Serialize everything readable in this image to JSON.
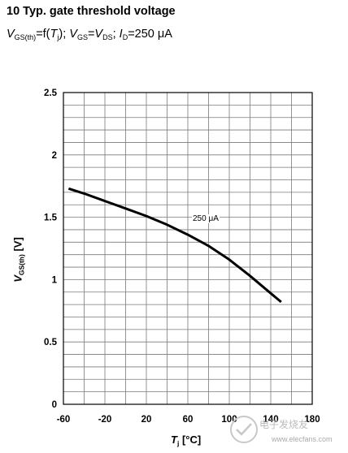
{
  "header": {
    "title": "10 Typ. gate threshold voltage",
    "subtitle": {
      "v": "V",
      "gs_th": "GS(th)",
      "eq_f": "=f(",
      "t": "T",
      "j": "j",
      "close": ");",
      "v2": "V",
      "gs": "GS",
      "eq": "=",
      "v3": "V",
      "ds": "DS",
      "semi": ";",
      "i": "I",
      "d": "D",
      "eq_val": "=250 μA"
    }
  },
  "watermark": {
    "text": "电子发烧友",
    "sub": "www.elecfans.com"
  },
  "chart_data": {
    "type": "line",
    "title": "10 Typ. gate threshold voltage",
    "xlabel": {
      "main": "T",
      "sub": "j",
      "unit": "[°C]"
    },
    "ylabel": {
      "main": "V",
      "sub": "GS(th)",
      "unit": "[V]"
    },
    "xlim": [
      -60,
      180
    ],
    "ylim": [
      0,
      2.5
    ],
    "xticks": [
      "-60",
      "-20",
      "20",
      "60",
      "100",
      "140",
      "180"
    ],
    "xtick_values": [
      -60,
      -20,
      20,
      60,
      100,
      140,
      180
    ],
    "yticks": [
      "0",
      "0.5",
      "1",
      "1.5",
      "2",
      "2.5"
    ],
    "ytick_values": [
      0,
      0.5,
      1,
      1.5,
      2,
      2.5
    ],
    "grid": true,
    "x_minor_step": 20,
    "y_minor_step": 0.1,
    "series": [
      {
        "name": "250 μA",
        "color": "#000000",
        "x": [
          -55,
          -40,
          -20,
          0,
          20,
          40,
          60,
          80,
          100,
          120,
          140,
          150
        ],
        "y": [
          1.73,
          1.69,
          1.63,
          1.57,
          1.51,
          1.44,
          1.36,
          1.27,
          1.16,
          1.03,
          0.89,
          0.82
        ]
      }
    ]
  }
}
